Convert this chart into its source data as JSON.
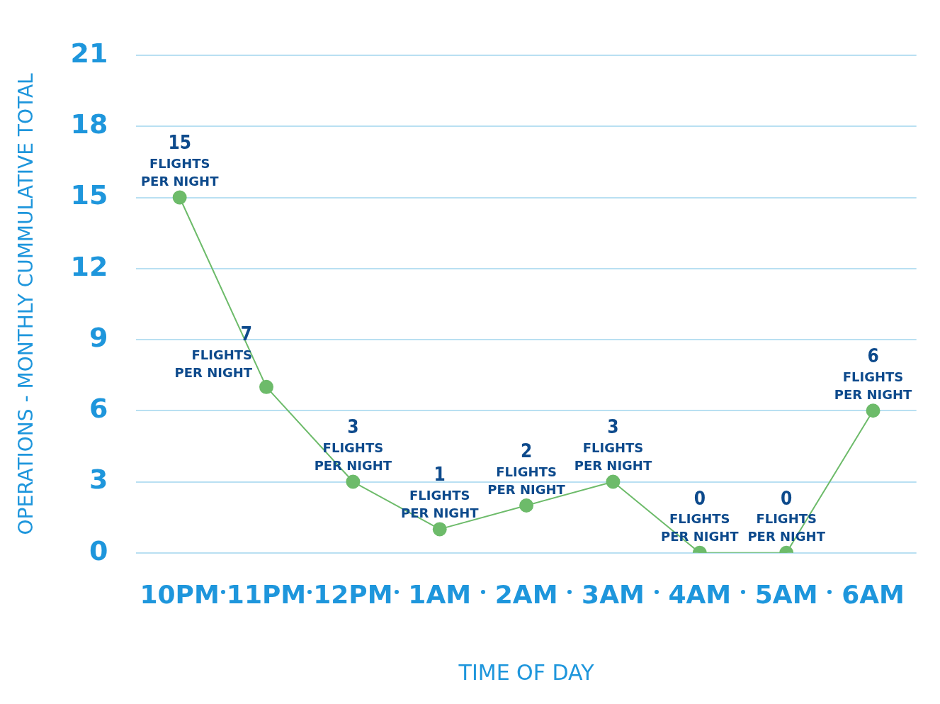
{
  "chart_data": {
    "type": "line",
    "xlabel": "TIME OF DAY",
    "ylabel": "OPERATIONS - MONTHLY CUMMULATIVE TOTAL",
    "categories": [
      "10PM",
      "11PM",
      "12PM",
      "1AM",
      "2AM",
      "3AM",
      "4AM",
      "5AM",
      "6AM"
    ],
    "series": [
      {
        "color": "#6dbb6a",
        "values": [
          15,
          7,
          3,
          1,
          2,
          3,
          0,
          0,
          6
        ],
        "value_labels": [
          "15\nFLIGHTS\nPER NIGHT",
          "7\nFLIGHTS\nPER NIGHT",
          "3\nFLIGHTS\nPER NIGHT",
          "1\nFLIGHTS\nPER NIGHT",
          "2\nFLIGHTS\nPER NIGHT",
          "3\nFLIGHTS\nPER NIGHT",
          "0\nFLIGHTS\nPER NIGHT",
          "0\nFLIGHTS\nPER NIGHT",
          "6\nFLIGHTS\nPER NIGHT"
        ]
      }
    ],
    "ylim": [
      0,
      21
    ],
    "yticks": [
      0,
      3,
      6,
      9,
      12,
      15,
      18,
      21
    ],
    "grid": "y",
    "legend": false,
    "marker": "circle",
    "line_style": "solid"
  }
}
